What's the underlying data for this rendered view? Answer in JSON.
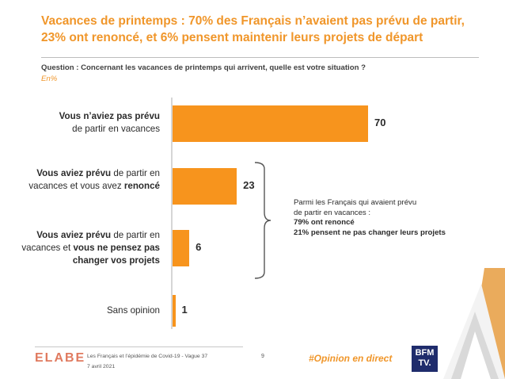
{
  "title": "Vacances de printemps : 70% des Français n’avaient pas prévu de partir, 23% ont renoncé, et 6% pensent maintenir leurs projets de départ",
  "question": "Question : Concernant les vacances de printemps qui arrivent, quelle est votre situation ?",
  "unit": "En%",
  "labels": {
    "cat1_bold": "Vous n’aviez pas prévu",
    "cat1_rest": "de partir en vacances",
    "cat2_bold": "Vous aviez prévu",
    "cat2_mid": " de partir en vacances et vous avez ",
    "cat2_bold2": "renoncé",
    "cat3_bold": "Vous aviez prévu",
    "cat3_mid": " de partir en vacances et ",
    "cat3_bold2": "vous ne pensez pas changer vos projets",
    "cat4": "Sans opinion"
  },
  "chart_data": {
    "type": "bar",
    "orientation": "horizontal",
    "categories": [
      "Vous n’aviez pas prévu de partir en vacances",
      "Vous aviez prévu de partir en vacances et vous avez renoncé",
      "Vous aviez prévu de partir en vacances et vous ne pensez pas changer vos projets",
      "Sans opinion"
    ],
    "values": [
      70,
      23,
      6,
      1
    ],
    "value_labels": [
      "70",
      "23",
      "6",
      "1"
    ],
    "title": "Vacances de printemps : 70% des Français n’avaient pas prévu de partir, 23% ont renoncé, et 6% pensent maintenir leurs projets de départ",
    "xlim": [
      0,
      70
    ],
    "bar_color": "#f7941d",
    "grid": false,
    "annotation": {
      "line1": "Parmi les Français qui avaient prévu",
      "line2": "de partir en vacances :",
      "line3": "79% ont renoncé",
      "line4": "21% pensent ne pas changer leurs projets"
    }
  },
  "footer": {
    "logo": "ELABE",
    "source": "Les Français et l’épidémie de Covid-19 - Vague 37",
    "date": "7 avril 2021",
    "page": "9",
    "hashtag": "#Opinion en direct",
    "partner_line1": "BFM",
    "partner_line2": "TV."
  },
  "colors": {
    "accent": "#f0962a",
    "bar": "#f7941d",
    "partner": "#1f2c6c"
  }
}
